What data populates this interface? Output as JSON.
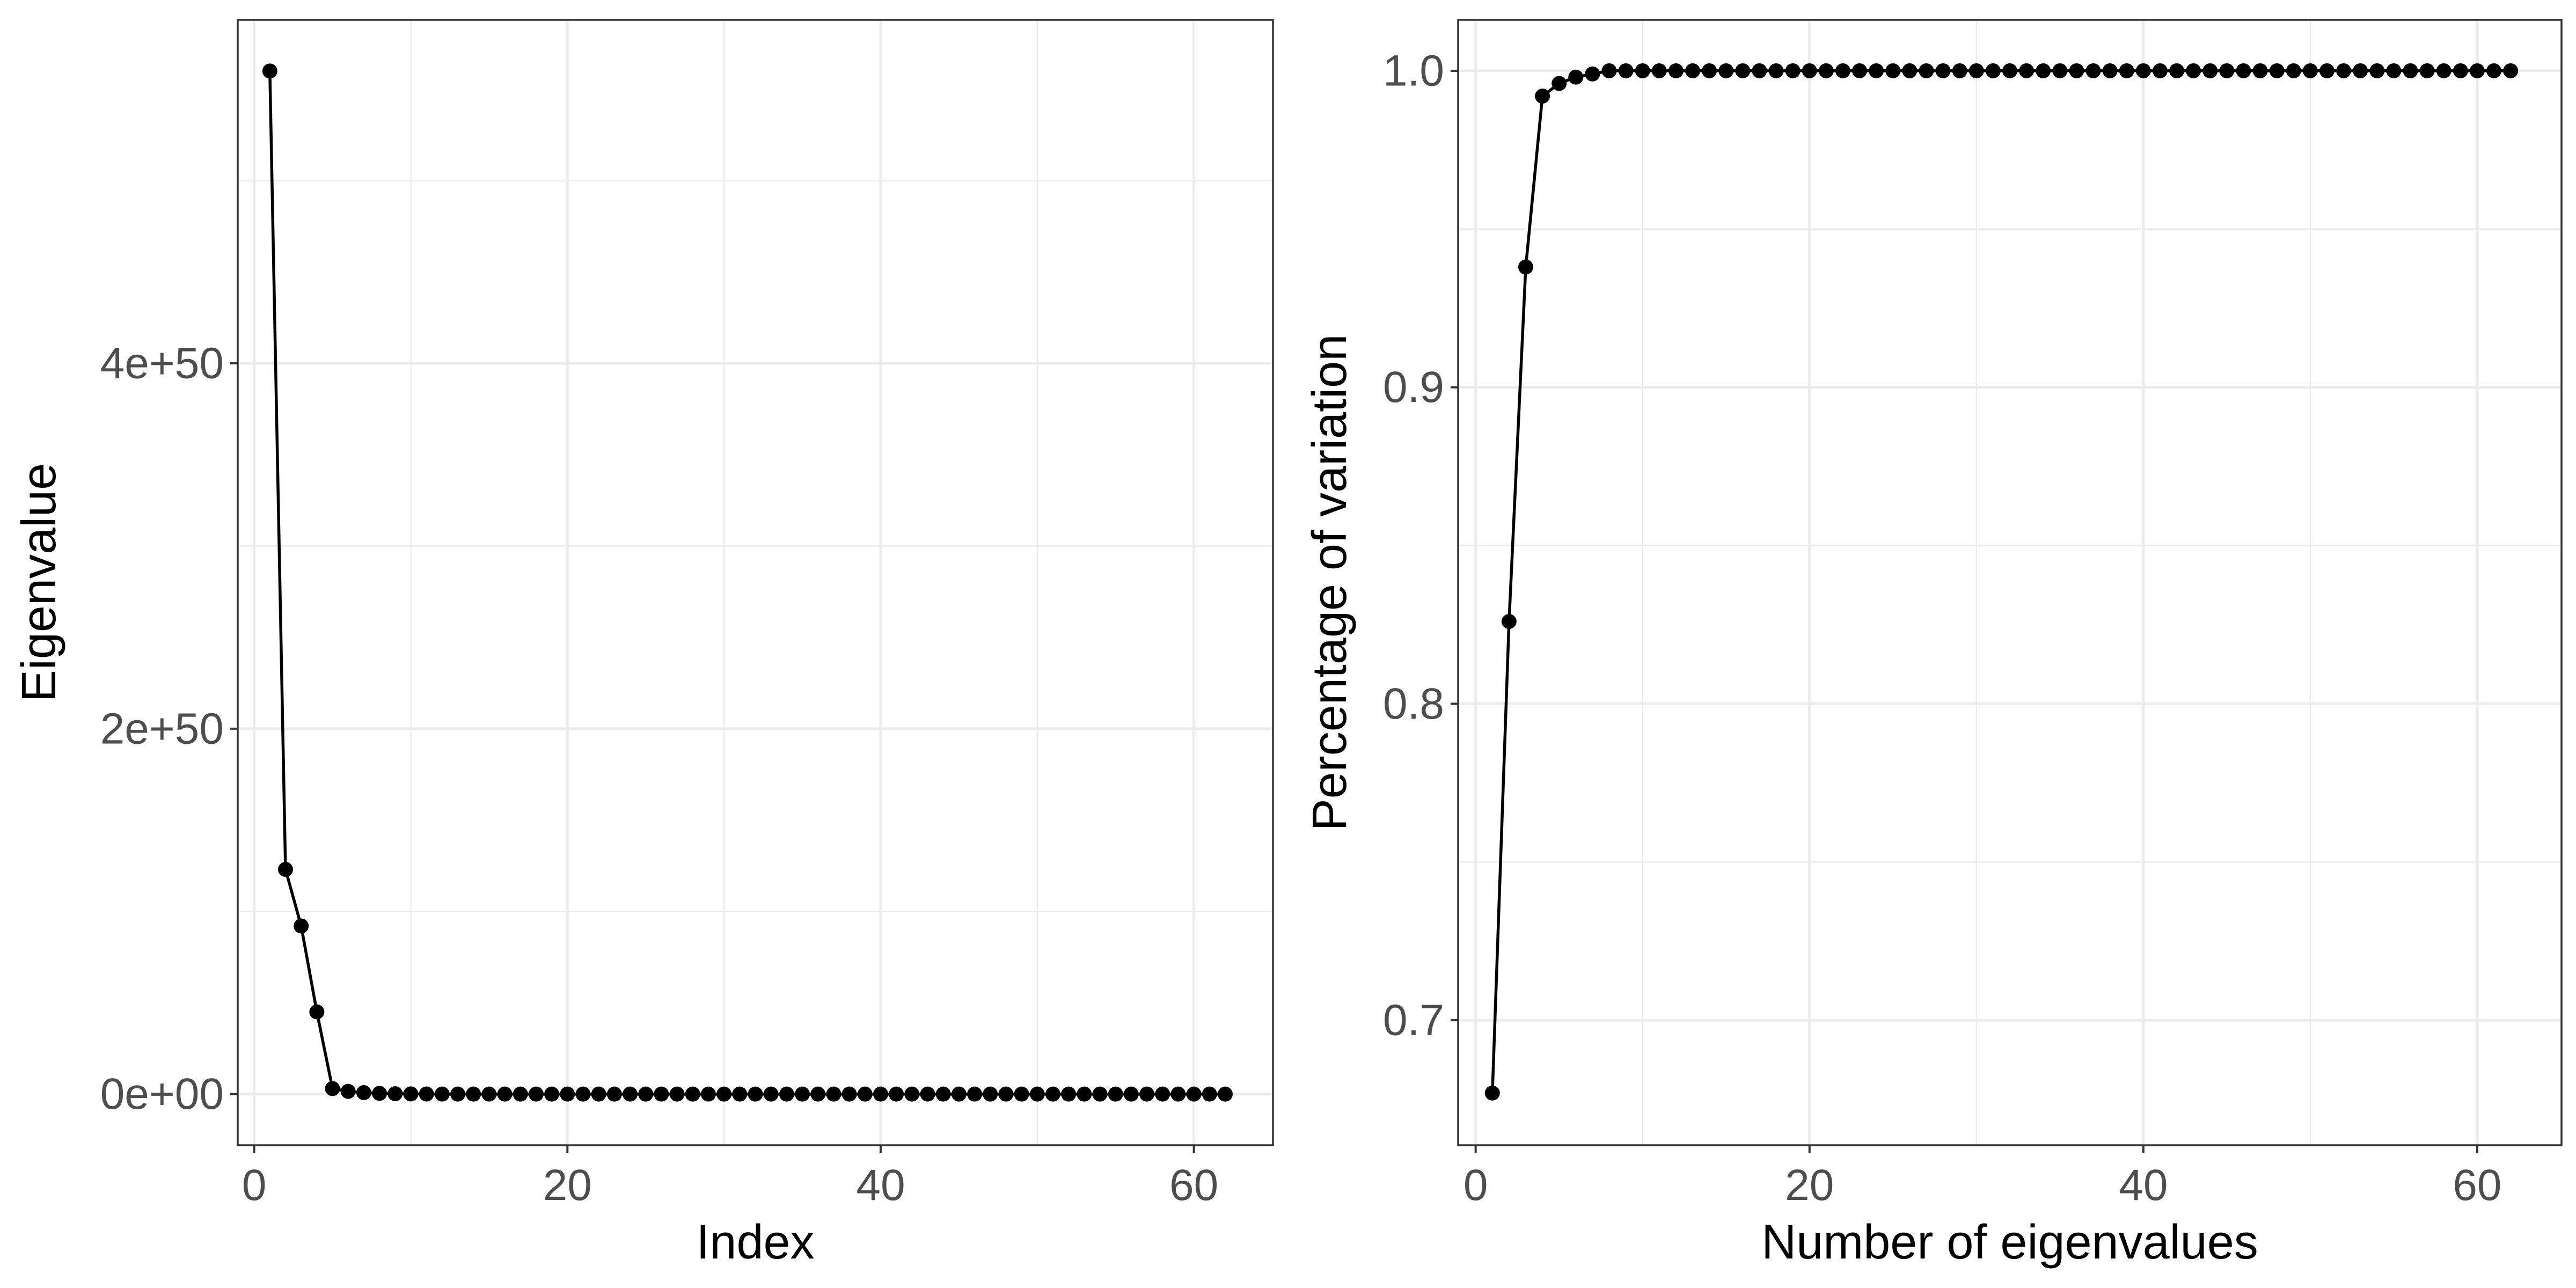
{
  "chart_data": [
    {
      "type": "line",
      "xlabel": "Index",
      "ylabel": "Eigenvalue",
      "xlim": [
        -1.05,
        65.05
      ],
      "ylim": [
        -2.8e+49,
        5.88e+50
      ],
      "x_major_ticks": [
        0,
        20,
        40,
        60
      ],
      "x_minor_ticks": [
        10,
        30,
        50
      ],
      "x_tick_labels": [
        "0",
        "20",
        "40",
        "60"
      ],
      "y_major_ticks": [
        0,
        2e+50,
        4e+50
      ],
      "y_minor_ticks": [
        1e+50,
        3e+50,
        5e+50
      ],
      "y_tick_labels": [
        "0e+00",
        "2e+50",
        "4e+50"
      ],
      "grid": true,
      "markers": true,
      "x": [
        1,
        2,
        3,
        4,
        5,
        6,
        7,
        8,
        9,
        10,
        11,
        12,
        13,
        14,
        15,
        16,
        17,
        18,
        19,
        20,
        21,
        22,
        23,
        24,
        25,
        26,
        27,
        28,
        29,
        30,
        31,
        32,
        33,
        34,
        35,
        36,
        37,
        38,
        39,
        40,
        41,
        42,
        43,
        44,
        45,
        46,
        47,
        48,
        49,
        50,
        51,
        52,
        53,
        54,
        55,
        56,
        57,
        58,
        59,
        60,
        61,
        62
      ],
      "y": [
        5.6e+50,
        1.23e+50,
        9.2e+49,
        4.5e+49,
        3e+48,
        1.5e+48,
        8e+47,
        4e+47,
        2e+47,
        1e+47,
        5e+46,
        0,
        0,
        0,
        0,
        0,
        0,
        0,
        0,
        0,
        0,
        0,
        0,
        0,
        0,
        0,
        0,
        0,
        0,
        0,
        0,
        0,
        0,
        0,
        0,
        0,
        0,
        0,
        0,
        0,
        0,
        0,
        0,
        0,
        0,
        0,
        0,
        0,
        0,
        0,
        0,
        0,
        0,
        0,
        0,
        0,
        0,
        0,
        0,
        0,
        0,
        0
      ]
    },
    {
      "type": "line",
      "xlabel": "Number of eigenvalues",
      "ylabel": "Percentage of variation",
      "xlim": [
        -1.05,
        65.05
      ],
      "ylim": [
        0.6605,
        1.0161
      ],
      "x_major_ticks": [
        0,
        20,
        40,
        60
      ],
      "x_minor_ticks": [
        10,
        30,
        50
      ],
      "x_tick_labels": [
        "0",
        "20",
        "40",
        "60"
      ],
      "y_major_ticks": [
        0.7,
        0.8,
        0.9,
        1.0
      ],
      "y_minor_ticks": [
        0.75,
        0.85,
        0.95
      ],
      "y_tick_labels": [
        "0.7",
        "0.8",
        "0.9",
        "1.0"
      ],
      "grid": true,
      "markers": true,
      "x": [
        1,
        2,
        3,
        4,
        5,
        6,
        7,
        8,
        9,
        10,
        11,
        12,
        13,
        14,
        15,
        16,
        17,
        18,
        19,
        20,
        21,
        22,
        23,
        24,
        25,
        26,
        27,
        28,
        29,
        30,
        31,
        32,
        33,
        34,
        35,
        36,
        37,
        38,
        39,
        40,
        41,
        42,
        43,
        44,
        45,
        46,
        47,
        48,
        49,
        50,
        51,
        52,
        53,
        54,
        55,
        56,
        57,
        58,
        59,
        60,
        61,
        62
      ],
      "y": [
        0.677,
        0.826,
        0.938,
        0.992,
        0.996,
        0.998,
        0.999,
        1.0,
        1.0,
        1.0,
        1.0,
        1.0,
        1.0,
        1.0,
        1.0,
        1.0,
        1.0,
        1.0,
        1.0,
        1.0,
        1.0,
        1.0,
        1.0,
        1.0,
        1.0,
        1.0,
        1.0,
        1.0,
        1.0,
        1.0,
        1.0,
        1.0,
        1.0,
        1.0,
        1.0,
        1.0,
        1.0,
        1.0,
        1.0,
        1.0,
        1.0,
        1.0,
        1.0,
        1.0,
        1.0,
        1.0,
        1.0,
        1.0,
        1.0,
        1.0,
        1.0,
        1.0,
        1.0,
        1.0,
        1.0,
        1.0,
        1.0,
        1.0,
        1.0,
        1.0,
        1.0,
        1.0
      ]
    }
  ]
}
